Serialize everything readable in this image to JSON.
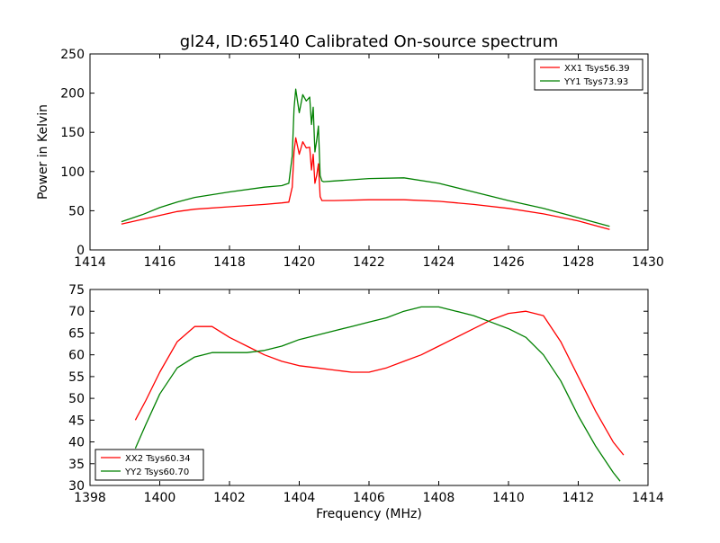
{
  "figure": {
    "title": "gl24, ID:65140 Calibrated On-source spectrum"
  },
  "chart_data": [
    {
      "type": "line",
      "title": "gl24, ID:65140 Calibrated On-source spectrum",
      "xlabel": "",
      "ylabel": "Power in Kelvin",
      "xlim": [
        1414,
        1430
      ],
      "ylim": [
        0,
        250
      ],
      "xticks": [
        "1414",
        "1416",
        "1418",
        "1420",
        "1422",
        "1424",
        "1426",
        "1428",
        "1430"
      ],
      "yticks": [
        "0",
        "50",
        "100",
        "150",
        "200",
        "250"
      ],
      "grid": false,
      "legend_position": "top-right",
      "series": [
        {
          "name": "XX1 Tsys56.39",
          "color": "#ff0000",
          "x": [
            1414.9,
            1415.5,
            1416.0,
            1416.5,
            1417.0,
            1418.0,
            1419.0,
            1419.5,
            1419.7,
            1419.8,
            1419.85,
            1419.9,
            1420.0,
            1420.1,
            1420.2,
            1420.3,
            1420.35,
            1420.4,
            1420.45,
            1420.5,
            1420.55,
            1420.6,
            1420.65,
            1420.7,
            1421.0,
            1422.0,
            1423.0,
            1424.0,
            1425.0,
            1426.0,
            1427.0,
            1428.0,
            1428.9
          ],
          "y": [
            33,
            39,
            44,
            49,
            52,
            55,
            58,
            60,
            61,
            80,
            125,
            143,
            122,
            138,
            130,
            131,
            102,
            122,
            85,
            95,
            110,
            68,
            63,
            63,
            63,
            64,
            64,
            62,
            58,
            53,
            46,
            37,
            26
          ]
        },
        {
          "name": "YY1 Tsys73.93",
          "color": "#008000",
          "x": [
            1414.9,
            1415.5,
            1416.0,
            1416.5,
            1417.0,
            1418.0,
            1419.0,
            1419.5,
            1419.7,
            1419.8,
            1419.85,
            1419.9,
            1420.0,
            1420.1,
            1420.2,
            1420.3,
            1420.35,
            1420.4,
            1420.45,
            1420.5,
            1420.55,
            1420.6,
            1420.65,
            1420.7,
            1421.0,
            1422.0,
            1423.0,
            1424.0,
            1425.0,
            1426.0,
            1427.0,
            1428.0,
            1428.9
          ],
          "y": [
            36,
            45,
            54,
            61,
            67,
            74,
            80,
            82,
            85,
            120,
            180,
            205,
            175,
            198,
            190,
            195,
            160,
            182,
            125,
            140,
            158,
            95,
            88,
            87,
            88,
            91,
            92,
            85,
            74,
            63,
            53,
            41,
            30
          ]
        }
      ]
    },
    {
      "type": "line",
      "title": "",
      "xlabel": "Frequency (MHz)",
      "ylabel": "",
      "xlim": [
        1398,
        1414
      ],
      "ylim": [
        30,
        75
      ],
      "xticks": [
        "1398",
        "1400",
        "1402",
        "1404",
        "1406",
        "1408",
        "1410",
        "1412",
        "1414"
      ],
      "yticks": [
        "30",
        "35",
        "40",
        "45",
        "50",
        "55",
        "60",
        "65",
        "70",
        "75"
      ],
      "grid": false,
      "legend_position": "bottom-left",
      "series": [
        {
          "name": "XX2 Tsys60.34",
          "color": "#ff0000",
          "x": [
            1399.3,
            1399.6,
            1400.0,
            1400.5,
            1401.0,
            1401.5,
            1402.0,
            1402.5,
            1403.0,
            1403.5,
            1404.0,
            1404.5,
            1405.0,
            1405.5,
            1406.0,
            1406.5,
            1407.0,
            1407.5,
            1408.0,
            1408.5,
            1409.0,
            1409.5,
            1410.0,
            1410.5,
            1411.0,
            1411.5,
            1412.0,
            1412.5,
            1413.0,
            1413.3
          ],
          "y": [
            45,
            49.5,
            56,
            63,
            66.5,
            66.5,
            64,
            62,
            60,
            58.5,
            57.5,
            57,
            56.5,
            56,
            56,
            57,
            58.5,
            60,
            62,
            64,
            66,
            68,
            69.5,
            70,
            69,
            63,
            55,
            47,
            40,
            37
          ]
        },
        {
          "name": "YY2 Tsys60.70",
          "color": "#008000",
          "x": [
            1399.3,
            1399.6,
            1400.0,
            1400.5,
            1401.0,
            1401.5,
            1402.0,
            1402.5,
            1403.0,
            1403.5,
            1404.0,
            1404.5,
            1405.0,
            1405.5,
            1406.0,
            1406.5,
            1407.0,
            1407.5,
            1408.0,
            1408.5,
            1409.0,
            1409.5,
            1410.0,
            1410.5,
            1411.0,
            1411.5,
            1412.0,
            1412.5,
            1413.0,
            1413.2
          ],
          "y": [
            38.5,
            44,
            51,
            57,
            59.5,
            60.5,
            60.5,
            60.5,
            61,
            62,
            63.5,
            64.5,
            65.5,
            66.5,
            67.5,
            68.5,
            70,
            71,
            71,
            70,
            69,
            67.5,
            66,
            64,
            60,
            54,
            46,
            39,
            33,
            31
          ]
        }
      ]
    }
  ]
}
